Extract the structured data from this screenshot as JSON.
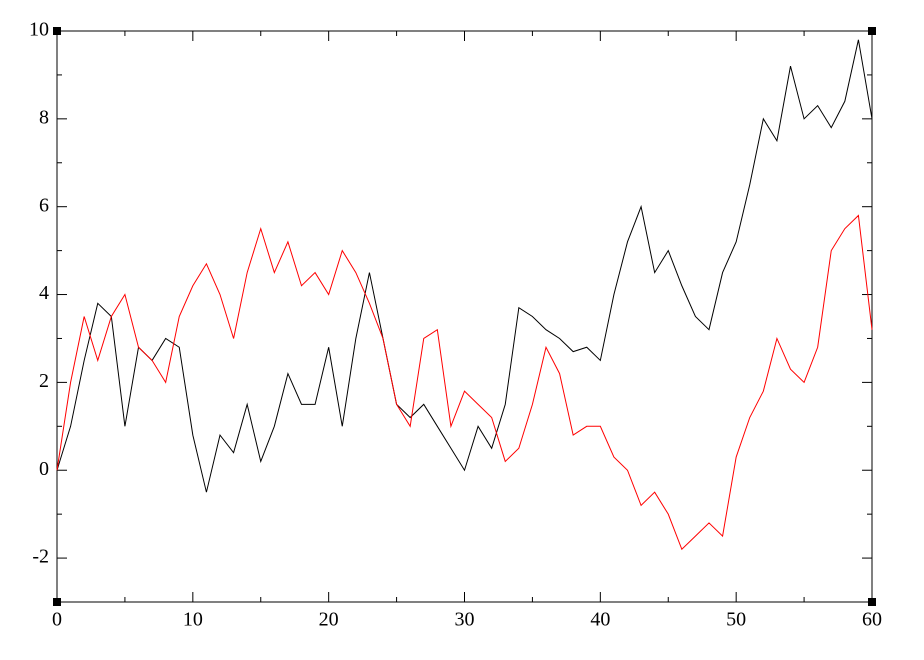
{
  "chart_data": {
    "type": "line",
    "x": [
      0,
      1,
      2,
      3,
      4,
      5,
      6,
      7,
      8,
      9,
      10,
      11,
      12,
      13,
      14,
      15,
      16,
      17,
      18,
      19,
      20,
      21,
      22,
      23,
      24,
      25,
      26,
      27,
      28,
      29,
      30,
      31,
      32,
      33,
      34,
      35,
      36,
      37,
      38,
      39,
      40,
      41,
      42,
      43,
      44,
      45,
      46,
      47,
      48,
      49,
      50,
      51,
      52,
      53,
      54,
      55,
      56,
      57,
      58,
      59,
      60
    ],
    "series": [
      {
        "color": "#000000",
        "values": [
          0,
          1,
          2.5,
          3.8,
          3.5,
          1.0,
          2.8,
          2.5,
          3.0,
          2.8,
          0.8,
          -0.5,
          0.8,
          0.4,
          1.5,
          0.2,
          1.0,
          2.2,
          1.5,
          1.5,
          2.8,
          1.0,
          3.0,
          4.5,
          3.0,
          1.5,
          1.2,
          1.5,
          1.0,
          0.5,
          0.0,
          1.0,
          0.5,
          1.5,
          3.7,
          3.5,
          3.2,
          3.0,
          2.7,
          2.8,
          2.5,
          4.0,
          5.2,
          6.0,
          4.5,
          5.0,
          4.2,
          3.5,
          3.2,
          4.5,
          5.2,
          6.5,
          8.0,
          7.5,
          9.2,
          8.0,
          8.3,
          7.8,
          8.4,
          9.8,
          8.0
        ]
      },
      {
        "color": "#ff0000",
        "values": [
          0,
          2,
          3.5,
          2.5,
          3.5,
          4.0,
          2.8,
          2.5,
          2.0,
          3.5,
          4.2,
          4.7,
          4.0,
          3.0,
          4.5,
          5.5,
          4.5,
          5.2,
          4.2,
          4.5,
          4.0,
          5.0,
          4.5,
          3.8,
          3.0,
          1.5,
          1.0,
          3.0,
          3.2,
          1.0,
          1.8,
          1.5,
          1.2,
          0.2,
          0.5,
          1.5,
          2.8,
          2.2,
          0.8,
          1.0,
          1.0,
          0.3,
          0.0,
          -0.8,
          -0.5,
          -1.0,
          -1.8,
          -1.5,
          -1.2,
          -1.5,
          0.3,
          1.2,
          1.8,
          3.0,
          2.3,
          2.0,
          2.8,
          5.0,
          5.5,
          5.8,
          3.2
        ]
      }
    ],
    "xlim": [
      0,
      60
    ],
    "xticks": [
      0,
      10,
      20,
      30,
      40,
      50,
      60
    ],
    "xminorticks": [
      5,
      15,
      25,
      35,
      45,
      55
    ],
    "ylim": [
      -3,
      10
    ],
    "yticks": [
      -2,
      0,
      2,
      4,
      6,
      8,
      10
    ],
    "yminorticks": [
      -3,
      -1,
      1,
      3,
      5,
      7,
      9
    ]
  }
}
